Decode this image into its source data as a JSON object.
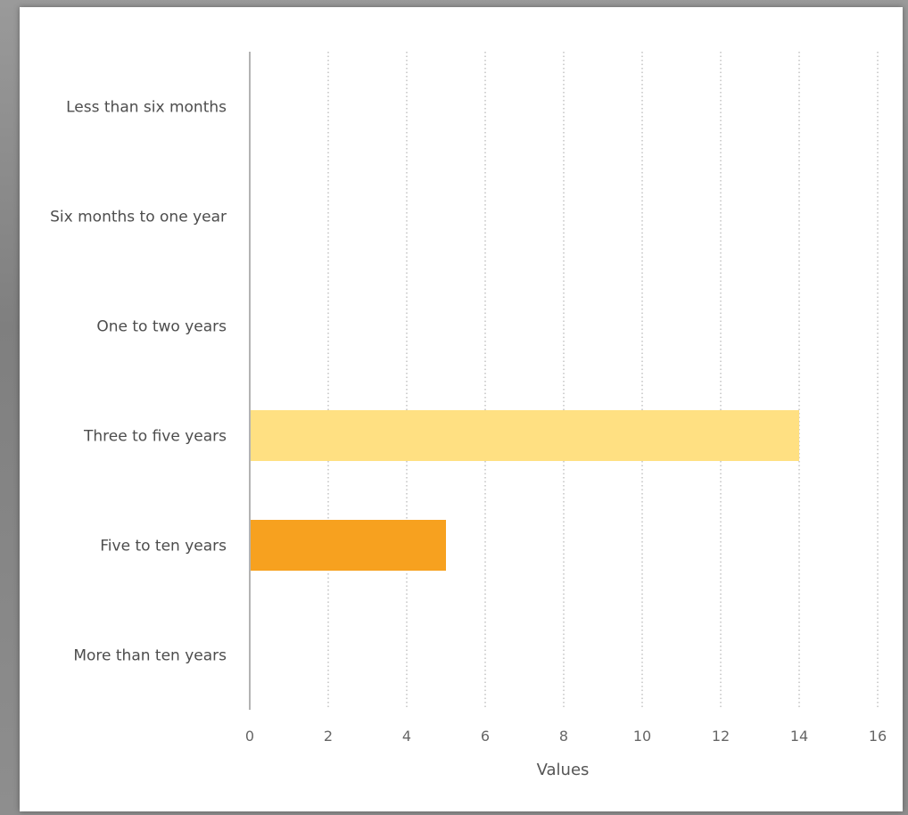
{
  "chart_data": {
    "type": "bar",
    "orientation": "horizontal",
    "categories": [
      "Less than six months",
      "Six months to one year",
      "One to two years",
      "Three to five years",
      "Five to ten years",
      "More than ten years"
    ],
    "values": [
      0,
      0,
      0,
      14,
      5,
      0
    ],
    "bar_colors": [
      "#FFE082",
      "#FFE082",
      "#FFE082",
      "#FFE082",
      "#F7A11F",
      "#FFE082"
    ],
    "xlabel": "Values",
    "ylabel": "",
    "title": "",
    "xlim": [
      0,
      16
    ],
    "x_ticks": [
      0,
      2,
      4,
      6,
      8,
      10,
      12,
      14,
      16
    ],
    "grid": "vertical-dotted",
    "legend": "none"
  }
}
